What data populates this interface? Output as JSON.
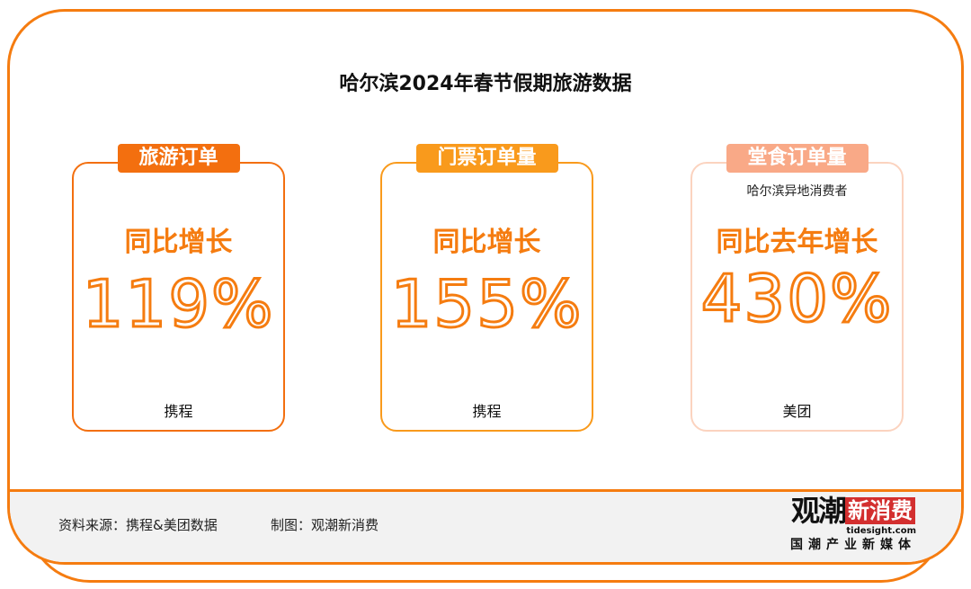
{
  "title": "哈尔滨2024年春节假期旅游数据",
  "colors": {
    "accent": "#F57C10",
    "tag1": "#F36F0F",
    "tag2": "#F99A1C",
    "tag3": "#F9A987"
  },
  "cards": [
    {
      "tag": "旅游订单",
      "subtitle": "",
      "growth_label": "同比增长",
      "value": "119%",
      "source": "携程"
    },
    {
      "tag": "门票订单量",
      "subtitle": "",
      "growth_label": "同比增长",
      "value": "155%",
      "source": "携程"
    },
    {
      "tag": "堂食订单量",
      "subtitle": "哈尔滨异地消费者",
      "growth_label": "同比去年增长",
      "value": "430%",
      "source": "美团"
    }
  ],
  "footer": {
    "source": "资料来源：携程&美团数据",
    "made_by": "制图：观潮新消费"
  },
  "logo": {
    "main": "观潮",
    "box": "新消费",
    "domain": "tidesight.com",
    "tagline": "国潮产业新媒体"
  }
}
